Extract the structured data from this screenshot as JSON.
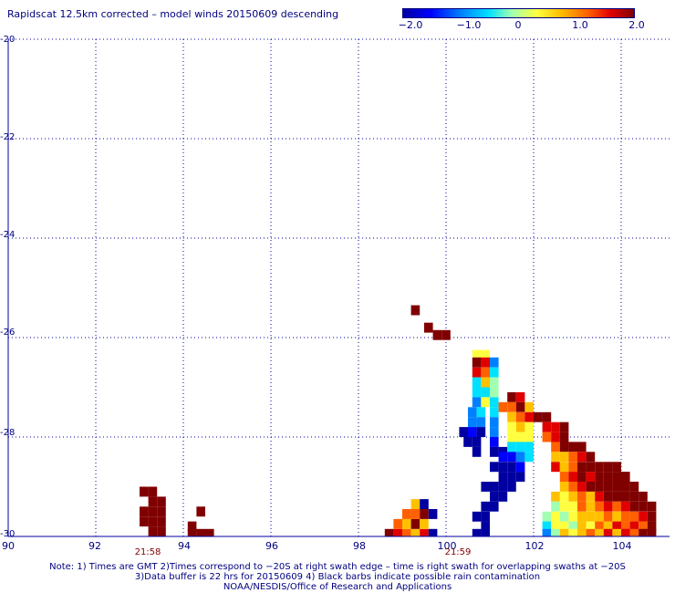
{
  "title": "Rapidscat 12.5km corrected – model winds 20150609 descending",
  "colorbar": {
    "ticks": [
      "−2.0",
      "−1.0",
      "0",
      "1.0",
      "2.0"
    ],
    "tick_values": [
      -2,
      -1,
      0,
      1,
      2
    ],
    "range": [
      -2,
      2
    ],
    "colors": [
      "#0000a0",
      "#0000ff",
      "#0080ff",
      "#00e0ff",
      "#a0ffb0",
      "#ffff40",
      "#ffc000",
      "#ff6000",
      "#e00000",
      "#800000"
    ]
  },
  "axes": {
    "lon_range": [
      90,
      104.8
    ],
    "lat_range": [
      -30,
      -20
    ],
    "x_ticks": [
      "90",
      "92",
      "94",
      "96",
      "98",
      "100",
      "102",
      "104"
    ],
    "x_tick_values": [
      90,
      92,
      94,
      96,
      98,
      100,
      102,
      104
    ],
    "y_ticks": [
      "-20",
      "-22",
      "-24",
      "-26",
      "-28",
      "-30"
    ],
    "y_tick_values": [
      -20,
      -22,
      -24,
      -26,
      -28,
      -30
    ],
    "grid": "dotted"
  },
  "time_labels": [
    {
      "text": "21:58",
      "lon": 93.2
    },
    {
      "text": "21:59",
      "lon": 100.0
    }
  ],
  "notes": {
    "line1": "Note: 1) Times are GMT 2)Times correspond to −20S at right swath edge – time is right swath for overlapping swaths at −20S",
    "line2": "3)Data buffer is 22 hrs for 20150609 4) Black barbs indicate possible rain contamination",
    "line3": "NOAA/NESDIS/Office of Research and Applications"
  },
  "chart_data": {
    "type": "heatmap",
    "description_units": "wind speed difference (m/s), cells at 0.2deg lon x 0.2deg lat, value -2..2",
    "cells": [
      {
        "lon": 93.1,
        "lat": -29.1,
        "v": 2
      },
      {
        "lon": 93.3,
        "lat": -29.1,
        "v": 2
      },
      {
        "lon": 93.3,
        "lat": -29.3,
        "v": 2
      },
      {
        "lon": 93.5,
        "lat": -29.3,
        "v": 2
      },
      {
        "lon": 93.1,
        "lat": -29.5,
        "v": 2
      },
      {
        "lon": 93.3,
        "lat": -29.5,
        "v": 2
      },
      {
        "lon": 93.5,
        "lat": -29.5,
        "v": 2
      },
      {
        "lon": 93.1,
        "lat": -29.7,
        "v": 1.8
      },
      {
        "lon": 93.3,
        "lat": -29.7,
        "v": 2
      },
      {
        "lon": 93.5,
        "lat": -29.7,
        "v": 2
      },
      {
        "lon": 93.3,
        "lat": -29.9,
        "v": 2
      },
      {
        "lon": 93.5,
        "lat": -29.9,
        "v": 2
      },
      {
        "lon": 94.4,
        "lat": -29.5,
        "v": 2
      },
      {
        "lon": 94.2,
        "lat": -29.8,
        "v": 2
      },
      {
        "lon": 94.2,
        "lat": -29.95,
        "v": 2
      },
      {
        "lon": 94.4,
        "lat": -29.95,
        "v": 2
      },
      {
        "lon": 94.6,
        "lat": -29.95,
        "v": 2
      },
      {
        "lon": 98.7,
        "lat": -29.95,
        "v": 2
      },
      {
        "lon": 98.9,
        "lat": -29.95,
        "v": 1.2
      },
      {
        "lon": 99.1,
        "lat": -29.95,
        "v": 1.0
      },
      {
        "lon": 99.3,
        "lat": -29.95,
        "v": 0.7
      },
      {
        "lon": 99.5,
        "lat": -29.95,
        "v": 1.4
      },
      {
        "lon": 99.7,
        "lat": -29.95,
        "v": -2
      },
      {
        "lon": 98.9,
        "lat": -29.75,
        "v": 0.8
      },
      {
        "lon": 99.1,
        "lat": -29.75,
        "v": 0.6
      },
      {
        "lon": 99.3,
        "lat": -29.75,
        "v": 1.7
      },
      {
        "lon": 99.5,
        "lat": -29.75,
        "v": 0.5
      },
      {
        "lon": 99.1,
        "lat": -29.55,
        "v": 1.0
      },
      {
        "lon": 99.3,
        "lat": -29.55,
        "v": 0.9
      },
      {
        "lon": 99.5,
        "lat": -29.55,
        "v": 1.8
      },
      {
        "lon": 99.7,
        "lat": -29.55,
        "v": -1.9
      },
      {
        "lon": 99.3,
        "lat": -29.35,
        "v": 0.4
      },
      {
        "lon": 99.5,
        "lat": -29.35,
        "v": -2
      },
      {
        "lon": 99.3,
        "lat": -25.45,
        "v": 2
      },
      {
        "lon": 99.6,
        "lat": -25.8,
        "v": 2
      },
      {
        "lon": 99.8,
        "lat": -25.95,
        "v": 2
      },
      {
        "lon": 100.0,
        "lat": -25.95,
        "v": 2
      },
      {
        "lon": 100.7,
        "lat": -26.35,
        "v": 0.2
      },
      {
        "lon": 100.9,
        "lat": -26.35,
        "v": 0.2
      },
      {
        "lon": 100.7,
        "lat": -26.5,
        "v": 1.6
      },
      {
        "lon": 100.9,
        "lat": -26.5,
        "v": 1.2
      },
      {
        "lon": 101.1,
        "lat": -26.5,
        "v": -1.0
      },
      {
        "lon": 100.7,
        "lat": -26.7,
        "v": 1.5
      },
      {
        "lon": 100.9,
        "lat": -26.7,
        "v": 0.9
      },
      {
        "lon": 101.1,
        "lat": -26.7,
        "v": -0.6
      },
      {
        "lon": 100.7,
        "lat": -26.9,
        "v": -0.5
      },
      {
        "lon": 100.9,
        "lat": -26.9,
        "v": 0.4
      },
      {
        "lon": 101.1,
        "lat": -26.9,
        "v": -0.4
      },
      {
        "lon": 100.7,
        "lat": -27.1,
        "v": -0.8
      },
      {
        "lon": 100.9,
        "lat": -27.1,
        "v": -0.7
      },
      {
        "lon": 101.1,
        "lat": -27.1,
        "v": -0.3
      },
      {
        "lon": 100.7,
        "lat": -27.3,
        "v": -0.9
      },
      {
        "lon": 100.9,
        "lat": -27.3,
        "v": 0.3
      },
      {
        "lon": 101.1,
        "lat": -27.3,
        "v": -0.6
      },
      {
        "lon": 100.6,
        "lat": -27.5,
        "v": -1.0
      },
      {
        "lon": 100.8,
        "lat": -27.5,
        "v": -0.7
      },
      {
        "lon": 101.1,
        "lat": -27.5,
        "v": -0.7
      },
      {
        "lon": 100.6,
        "lat": -27.7,
        "v": -0.9
      },
      {
        "lon": 100.8,
        "lat": -27.7,
        "v": -0.9
      },
      {
        "lon": 101.1,
        "lat": -27.7,
        "v": -1.0
      },
      {
        "lon": 100.4,
        "lat": -27.9,
        "v": -2
      },
      {
        "lon": 100.6,
        "lat": -27.9,
        "v": -1.3
      },
      {
        "lon": 100.8,
        "lat": -27.9,
        "v": -1.6
      },
      {
        "lon": 101.1,
        "lat": -27.9,
        "v": -1.2
      },
      {
        "lon": 100.5,
        "lat": -28.1,
        "v": -2
      },
      {
        "lon": 100.7,
        "lat": -28.1,
        "v": -2
      },
      {
        "lon": 101.1,
        "lat": -28.1,
        "v": -1.5
      },
      {
        "lon": 100.7,
        "lat": -28.3,
        "v": -2
      },
      {
        "lon": 101.1,
        "lat": -28.3,
        "v": -1.7
      },
      {
        "lon": 101.3,
        "lat": -28.3,
        "v": -1.9
      },
      {
        "lon": 101.5,
        "lat": -27.2,
        "v": 1.8
      },
      {
        "lon": 101.7,
        "lat": -27.2,
        "v": 1.3
      },
      {
        "lon": 101.3,
        "lat": -27.4,
        "v": 0.8
      },
      {
        "lon": 101.5,
        "lat": -27.4,
        "v": 1.1
      },
      {
        "lon": 101.7,
        "lat": -27.4,
        "v": 1.6
      },
      {
        "lon": 101.9,
        "lat": -27.4,
        "v": 0.7
      },
      {
        "lon": 101.5,
        "lat": -27.6,
        "v": 0.6
      },
      {
        "lon": 101.7,
        "lat": -27.6,
        "v": 0.9
      },
      {
        "lon": 101.9,
        "lat": -27.6,
        "v": 1.5
      },
      {
        "lon": 102.1,
        "lat": -27.6,
        "v": 2
      },
      {
        "lon": 102.3,
        "lat": -27.6,
        "v": 1.8
      },
      {
        "lon": 101.5,
        "lat": -27.8,
        "v": 0.1
      },
      {
        "lon": 101.7,
        "lat": -27.8,
        "v": 0.5
      },
      {
        "lon": 101.9,
        "lat": -27.8,
        "v": 0.3
      },
      {
        "lon": 101.5,
        "lat": -28.0,
        "v": 0.2
      },
      {
        "lon": 101.7,
        "lat": -28.0,
        "v": 0.2
      },
      {
        "lon": 101.9,
        "lat": -28.0,
        "v": 0.1
      },
      {
        "lon": 101.5,
        "lat": -28.2,
        "v": -0.6
      },
      {
        "lon": 101.7,
        "lat": -28.2,
        "v": -0.6
      },
      {
        "lon": 101.9,
        "lat": -28.2,
        "v": -0.7
      },
      {
        "lon": 101.3,
        "lat": -28.4,
        "v": -1.4
      },
      {
        "lon": 101.5,
        "lat": -28.4,
        "v": -1.3
      },
      {
        "lon": 101.7,
        "lat": -28.4,
        "v": -0.9
      },
      {
        "lon": 101.9,
        "lat": -28.4,
        "v": -0.7
      },
      {
        "lon": 101.1,
        "lat": -28.6,
        "v": -2
      },
      {
        "lon": 101.3,
        "lat": -28.6,
        "v": -1.9
      },
      {
        "lon": 101.5,
        "lat": -28.6,
        "v": -2
      },
      {
        "lon": 101.7,
        "lat": -28.6,
        "v": -1.4
      },
      {
        "lon": 101.3,
        "lat": -28.8,
        "v": -1.9
      },
      {
        "lon": 101.5,
        "lat": -28.8,
        "v": -1.9
      },
      {
        "lon": 101.7,
        "lat": -28.8,
        "v": -1.7
      },
      {
        "lon": 100.9,
        "lat": -29.0,
        "v": -1.9
      },
      {
        "lon": 101.1,
        "lat": -29.0,
        "v": -2
      },
      {
        "lon": 101.3,
        "lat": -29.0,
        "v": -2
      },
      {
        "lon": 101.5,
        "lat": -29.0,
        "v": -1.6
      },
      {
        "lon": 101.1,
        "lat": -29.2,
        "v": -2
      },
      {
        "lon": 101.3,
        "lat": -29.2,
        "v": -1.8
      },
      {
        "lon": 100.9,
        "lat": -29.4,
        "v": -2
      },
      {
        "lon": 101.1,
        "lat": -29.4,
        "v": -2
      },
      {
        "lon": 100.7,
        "lat": -29.6,
        "v": -2
      },
      {
        "lon": 100.9,
        "lat": -29.6,
        "v": -1.9
      },
      {
        "lon": 100.9,
        "lat": -29.8,
        "v": -2
      },
      {
        "lon": 100.7,
        "lat": -29.95,
        "v": -2
      },
      {
        "lon": 100.9,
        "lat": -29.95,
        "v": -2
      },
      {
        "lon": 102.3,
        "lat": -27.8,
        "v": 1.5
      },
      {
        "lon": 102.5,
        "lat": -27.8,
        "v": 1.2
      },
      {
        "lon": 102.7,
        "lat": -27.8,
        "v": 1.9
      },
      {
        "lon": 102.3,
        "lat": -28.0,
        "v": 1.0
      },
      {
        "lon": 102.5,
        "lat": -28.0,
        "v": 1.3
      },
      {
        "lon": 102.7,
        "lat": -28.0,
        "v": 2
      },
      {
        "lon": 102.5,
        "lat": -28.2,
        "v": 1.0
      },
      {
        "lon": 102.7,
        "lat": -28.2,
        "v": 1.7
      },
      {
        "lon": 102.9,
        "lat": -28.2,
        "v": 2
      },
      {
        "lon": 103.1,
        "lat": -28.2,
        "v": 2
      },
      {
        "lon": 102.5,
        "lat": -28.4,
        "v": 0.7
      },
      {
        "lon": 102.7,
        "lat": -28.4,
        "v": 0.5
      },
      {
        "lon": 102.9,
        "lat": -28.4,
        "v": 1.1
      },
      {
        "lon": 103.1,
        "lat": -28.4,
        "v": 1.4
      },
      {
        "lon": 103.3,
        "lat": -28.4,
        "v": 2
      },
      {
        "lon": 102.5,
        "lat": -28.6,
        "v": 1.2
      },
      {
        "lon": 102.7,
        "lat": -28.6,
        "v": 0.6
      },
      {
        "lon": 102.9,
        "lat": -28.6,
        "v": 1.0
      },
      {
        "lon": 103.1,
        "lat": -28.6,
        "v": 1.6
      },
      {
        "lon": 103.3,
        "lat": -28.6,
        "v": 2
      },
      {
        "lon": 103.5,
        "lat": -28.6,
        "v": 2
      },
      {
        "lon": 103.7,
        "lat": -28.6,
        "v": 2
      },
      {
        "lon": 103.9,
        "lat": -28.6,
        "v": 2
      },
      {
        "lon": 102.7,
        "lat": -28.8,
        "v": 0.8
      },
      {
        "lon": 102.9,
        "lat": -28.8,
        "v": 1.3
      },
      {
        "lon": 103.1,
        "lat": -28.8,
        "v": 1.7
      },
      {
        "lon": 103.3,
        "lat": -28.8,
        "v": 1.5
      },
      {
        "lon": 103.5,
        "lat": -28.8,
        "v": 2
      },
      {
        "lon": 103.7,
        "lat": -28.8,
        "v": 2
      },
      {
        "lon": 103.9,
        "lat": -28.8,
        "v": 2
      },
      {
        "lon": 104.1,
        "lat": -28.8,
        "v": 2
      },
      {
        "lon": 102.7,
        "lat": -29.0,
        "v": 0.4
      },
      {
        "lon": 102.9,
        "lat": -29.0,
        "v": 0.9
      },
      {
        "lon": 103.1,
        "lat": -29.0,
        "v": 1.2
      },
      {
        "lon": 103.3,
        "lat": -29.0,
        "v": 1.7
      },
      {
        "lon": 103.5,
        "lat": -29.0,
        "v": 1.6
      },
      {
        "lon": 103.7,
        "lat": -29.0,
        "v": 2
      },
      {
        "lon": 103.9,
        "lat": -29.0,
        "v": 1.7
      },
      {
        "lon": 104.1,
        "lat": -29.0,
        "v": 2
      },
      {
        "lon": 104.3,
        "lat": -29.0,
        "v": 2
      },
      {
        "lon": 102.5,
        "lat": -29.2,
        "v": 0.5
      },
      {
        "lon": 102.7,
        "lat": -29.2,
        "v": 0.2
      },
      {
        "lon": 102.9,
        "lat": -29.2,
        "v": 0.6
      },
      {
        "lon": 103.1,
        "lat": -29.2,
        "v": 1.0
      },
      {
        "lon": 103.3,
        "lat": -29.2,
        "v": 0.7
      },
      {
        "lon": 103.5,
        "lat": -29.2,
        "v": 1.3
      },
      {
        "lon": 103.7,
        "lat": -29.2,
        "v": 1.9
      },
      {
        "lon": 103.9,
        "lat": -29.2,
        "v": 2
      },
      {
        "lon": 104.1,
        "lat": -29.2,
        "v": 1.6
      },
      {
        "lon": 104.3,
        "lat": -29.2,
        "v": 2
      },
      {
        "lon": 104.5,
        "lat": -29.2,
        "v": 1.8
      },
      {
        "lon": 102.5,
        "lat": -29.4,
        "v": -0.4
      },
      {
        "lon": 102.7,
        "lat": -29.4,
        "v": 0.3
      },
      {
        "lon": 102.9,
        "lat": -29.4,
        "v": 0.1
      },
      {
        "lon": 103.1,
        "lat": -29.4,
        "v": 0.8
      },
      {
        "lon": 103.3,
        "lat": -29.4,
        "v": 0.5
      },
      {
        "lon": 103.5,
        "lat": -29.4,
        "v": 0.9
      },
      {
        "lon": 103.7,
        "lat": -29.4,
        "v": 1.2
      },
      {
        "lon": 103.9,
        "lat": -29.4,
        "v": 0.9
      },
      {
        "lon": 104.1,
        "lat": -29.4,
        "v": 1.3
      },
      {
        "lon": 104.3,
        "lat": -29.4,
        "v": 1.7
      },
      {
        "lon": 104.5,
        "lat": -29.4,
        "v": 2
      },
      {
        "lon": 104.7,
        "lat": -29.4,
        "v": 2
      },
      {
        "lon": 102.3,
        "lat": -29.6,
        "v": -0.2
      },
      {
        "lon": 102.5,
        "lat": -29.6,
        "v": 0.3
      },
      {
        "lon": 102.7,
        "lat": -29.6,
        "v": -0.3
      },
      {
        "lon": 102.9,
        "lat": -29.6,
        "v": 0.2
      },
      {
        "lon": 103.1,
        "lat": -29.6,
        "v": 0.4
      },
      {
        "lon": 103.3,
        "lat": -29.6,
        "v": 0.6
      },
      {
        "lon": 103.5,
        "lat": -29.6,
        "v": 0.4
      },
      {
        "lon": 103.7,
        "lat": -29.6,
        "v": 0.9
      },
      {
        "lon": 103.9,
        "lat": -29.6,
        "v": 0.6
      },
      {
        "lon": 104.1,
        "lat": -29.6,
        "v": 1.1
      },
      {
        "lon": 104.3,
        "lat": -29.6,
        "v": 0.8
      },
      {
        "lon": 104.5,
        "lat": -29.6,
        "v": 1.5
      },
      {
        "lon": 104.7,
        "lat": -29.6,
        "v": 2
      },
      {
        "lon": 102.3,
        "lat": -29.8,
        "v": -0.6
      },
      {
        "lon": 102.5,
        "lat": -29.8,
        "v": 0.0
      },
      {
        "lon": 102.7,
        "lat": -29.8,
        "v": 0.3
      },
      {
        "lon": 102.9,
        "lat": -29.8,
        "v": -0.2
      },
      {
        "lon": 103.1,
        "lat": -29.8,
        "v": 0.7
      },
      {
        "lon": 103.3,
        "lat": -29.8,
        "v": 0.2
      },
      {
        "lon": 103.5,
        "lat": -29.8,
        "v": 0.9
      },
      {
        "lon": 103.7,
        "lat": -29.8,
        "v": 0.5
      },
      {
        "lon": 103.9,
        "lat": -29.8,
        "v": 1.2
      },
      {
        "lon": 104.1,
        "lat": -29.8,
        "v": 0.8
      },
      {
        "lon": 104.3,
        "lat": -29.8,
        "v": 1.5
      },
      {
        "lon": 104.5,
        "lat": -29.8,
        "v": 1.0
      },
      {
        "lon": 104.7,
        "lat": -29.8,
        "v": 1.8
      },
      {
        "lon": 102.3,
        "lat": -29.95,
        "v": -1.0
      },
      {
        "lon": 102.5,
        "lat": -29.95,
        "v": -0.3
      },
      {
        "lon": 102.7,
        "lat": -29.95,
        "v": 0.5
      },
      {
        "lon": 102.9,
        "lat": -29.95,
        "v": 0.1
      },
      {
        "lon": 103.1,
        "lat": -29.95,
        "v": 0.6
      },
      {
        "lon": 103.3,
        "lat": -29.95,
        "v": 1.0
      },
      {
        "lon": 103.5,
        "lat": -29.95,
        "v": 0.4
      },
      {
        "lon": 103.7,
        "lat": -29.95,
        "v": 1.2
      },
      {
        "lon": 103.9,
        "lat": -29.95,
        "v": 0.7
      },
      {
        "lon": 104.1,
        "lat": -29.95,
        "v": 1.4
      },
      {
        "lon": 104.3,
        "lat": -29.95,
        "v": 1.1
      },
      {
        "lon": 104.5,
        "lat": -29.95,
        "v": 1.6
      },
      {
        "lon": 104.7,
        "lat": -29.95,
        "v": 2
      }
    ]
  }
}
